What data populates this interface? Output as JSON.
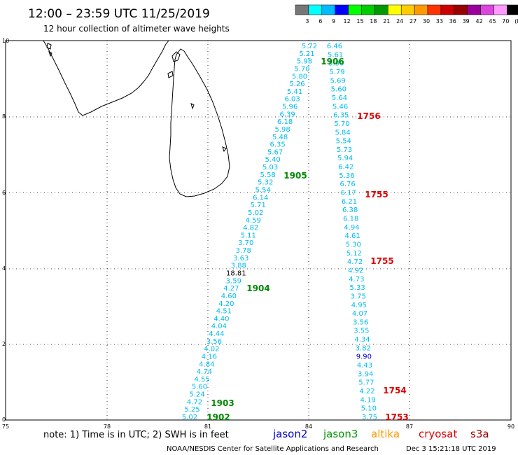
{
  "header": {
    "title": "12:00 – 23:59 UTC 11/25/2019",
    "subtitle": "12 hour collection of altimeter wave heights"
  },
  "legend": {
    "labels": [
      "3",
      "6",
      "9",
      "12",
      "15",
      "18",
      "21",
      "24",
      "27",
      "30",
      "33",
      "36",
      "39",
      "42",
      "45",
      "70",
      "(ft)"
    ],
    "colors": [
      "#777777",
      "#00ffff",
      "#00bbff",
      "#0000ff",
      "#00ff00",
      "#00cc00",
      "#009900",
      "#ffff00",
      "#ffcc00",
      "#ff9900",
      "#ff3300",
      "#cc0000",
      "#990000",
      "#990099",
      "#dd44dd",
      "#ff99ff",
      "#000000"
    ]
  },
  "axes": {
    "x_ticks": [
      "75",
      "78",
      "81",
      "84",
      "87",
      "90"
    ],
    "y_ticks": [
      "10",
      "8",
      "6",
      "4",
      "2",
      "0"
    ]
  },
  "track1": {
    "color": "#00bbee",
    "values": [
      "5.72",
      "5.21",
      "5.98",
      "5.70",
      "5.80",
      "5.26",
      "5.41",
      "6.03",
      "5.96",
      "6.39",
      "6.18",
      "5.98",
      "5.48",
      "6.35",
      "5.67",
      "5.40",
      "5.03",
      "5.58",
      "5.32",
      "5.54",
      "6.14",
      "5.71",
      "5.02",
      "4.59",
      "4.82",
      "5.11",
      "3.70",
      "3.78",
      "3.63",
      "3.88",
      "18.81",
      "3.59",
      "4.27",
      "4.60",
      "4.20",
      "4.51",
      "4.40",
      "4.04",
      "4.44",
      "3.56",
      "4.02",
      "4.16",
      "4.84",
      "4.74",
      "4.55",
      "5.60",
      "5.24",
      "4.72",
      "5.25",
      "5.02"
    ]
  },
  "track2": {
    "color": "#00bbee",
    "values": [
      "6.46",
      "5.61",
      "5.90",
      "5.79",
      "5.69",
      "5.60",
      "5.64",
      "5.46",
      "6.35",
      "5.70",
      "5.84",
      "5.54",
      "5.73",
      "5.94",
      "6.42",
      "5.36",
      "6.76",
      "6.17",
      "6.21",
      "6.38",
      "6.18",
      "4.94",
      "4.61",
      "5.30",
      "5.12",
      "4.72",
      "4.92",
      "4.73",
      "5.33",
      "3.75",
      "4.95",
      "4.07",
      "3.56",
      "3.55",
      "4.34",
      "3.82",
      "9.90",
      "4.43",
      "3.94",
      "5.77",
      "4.22",
      "4.19",
      "5.10",
      "3.75"
    ]
  },
  "times": [
    {
      "label": "1906",
      "color": "#008800"
    },
    {
      "label": "1905",
      "color": "#008800"
    },
    {
      "label": "1904",
      "color": "#008800"
    },
    {
      "label": "1903",
      "color": "#008800"
    },
    {
      "label": "1902",
      "color": "#008800"
    },
    {
      "label": "1756",
      "color": "#dd0000"
    },
    {
      "label": "1755",
      "color": "#dd0000"
    },
    {
      "label": "1755",
      "color": "#dd0000"
    },
    {
      "label": "1754",
      "color": "#dd0000"
    },
    {
      "label": "1753",
      "color": "#dd0000"
    }
  ],
  "footer": {
    "note": "note:  1) Time is in UTC;  2) SWH is in feet",
    "satellites": [
      {
        "name": "jason2",
        "color": "#0000cc"
      },
      {
        "name": "jason3",
        "color": "#009900"
      },
      {
        "name": "altika",
        "color": "#ff9900"
      },
      {
        "name": "cryosat",
        "color": "#dd0000"
      },
      {
        "name": "s3a",
        "color": "#990000"
      }
    ],
    "credit": "NOAA/NESDIS Center for Satellite Applications and Research",
    "timestamp": "Dec  3 15:21:18 UTC 2019"
  }
}
